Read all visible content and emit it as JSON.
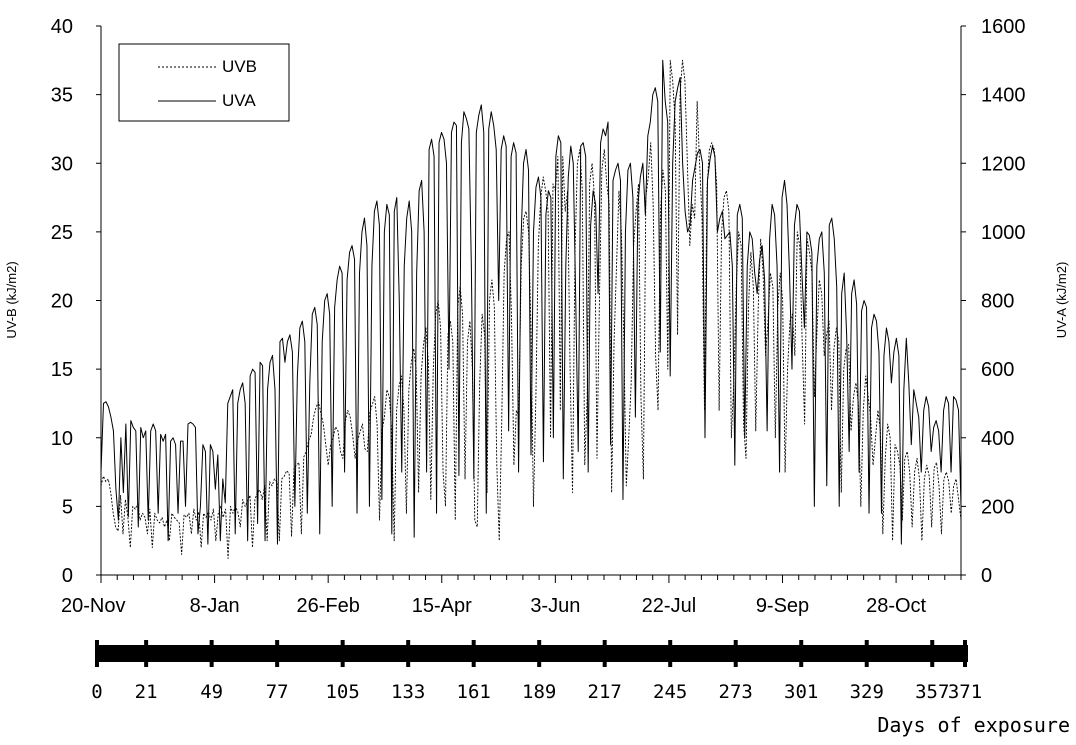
{
  "chart_data": {
    "type": "line",
    "title": "",
    "ylabel_left": "UV-B (kJ/m2)",
    "ylabel_right": "UV-A (kJ/m2)",
    "ylim_left": [
      0,
      40
    ],
    "ylim_right": [
      0,
      1600
    ],
    "yticks_left": [
      "0",
      "5",
      "10",
      "15",
      "20",
      "25",
      "30",
      "35",
      "40"
    ],
    "yticks_right": [
      "0",
      "200",
      "400",
      "600",
      "800",
      "1000",
      "1200",
      "1400",
      "1600"
    ],
    "x_start_label": "20-Nov",
    "date_ticks": [
      "20-Nov",
      "8-Jan",
      "26-Feb",
      "15-Apr",
      "3-Jun",
      "22-Jul",
      "9-Sep",
      "28-Oct"
    ],
    "xlim_days": [
      0,
      371
    ],
    "grid": false,
    "legend_position": "top-left",
    "series": [
      {
        "name": "UVB",
        "axis": "left",
        "line_style": "dotted",
        "values": [
          6.5,
          7.2,
          6.8,
          7.0,
          6.0,
          4.5,
          3.5,
          3.2,
          5.8,
          3.0,
          5.5,
          4.2,
          2.0,
          5.0,
          4.8,
          5.2,
          4.0,
          4.5,
          4.2,
          3.0,
          4.8,
          2.0,
          4.5,
          4.0,
          3.8,
          4.2,
          3.5,
          4.0,
          2.5,
          4.5,
          4.2,
          4.0,
          3.8,
          1.5,
          4.4,
          4.2,
          4.5,
          3.0,
          4.8,
          4.0,
          4.6,
          2.0,
          4.5,
          4.2,
          4.6,
          4.0,
          4.8,
          2.5,
          4.5,
          5.0,
          4.2,
          4.8,
          1.2,
          5.0,
          4.5,
          5.0,
          4.6,
          3.5,
          5.5,
          5.0,
          5.4,
          5.8,
          2.0,
          5.5,
          6.0,
          6.2,
          5.5,
          6.5,
          2.5,
          6.8,
          6.5,
          7.0,
          6.8,
          2.5,
          7.0,
          7.2,
          7.6,
          7.4,
          2.8,
          7.8,
          8.0,
          8.2,
          3.0,
          8.6,
          9.0,
          9.8,
          10.2,
          11.5,
          12.2,
          12.6,
          11.8,
          11.0,
          9.5,
          8.0,
          9.5,
          10.0,
          10.8,
          10.5,
          9.0,
          8.5,
          11.2,
          12.0,
          11.5,
          10.2,
          8.5,
          9.8,
          10.4,
          11.0,
          9.2,
          9.0,
          11.8,
          12.4,
          13.0,
          11.0,
          4.0,
          10.5,
          11.5,
          13.5,
          13.0,
          10.5,
          2.5,
          12.0,
          13.8,
          14.5,
          12.0,
          4.5,
          13.5,
          15.5,
          16.5,
          15.0,
          6.0,
          14.5,
          16.8,
          18.0,
          15.5,
          5.5,
          15.0,
          19.0,
          20.0,
          18.0,
          7.5,
          5.0,
          17.5,
          18.5,
          17.0,
          4.0,
          19.5,
          21.0,
          19.0,
          7.0,
          17.0,
          18.5,
          15.0,
          4.0,
          3.5,
          14.0,
          19.0,
          17.5,
          6.0,
          20.0,
          21.5,
          19.5,
          8.0,
          2.5,
          11.0,
          22.0,
          24.5,
          25.0,
          19.0,
          8.0,
          12.0,
          11.5,
          22.5,
          26.0,
          26.5,
          25.0,
          18.0,
          5.0,
          13.0,
          24.0,
          27.5,
          29.0,
          28.0,
          26.5,
          10.0,
          28.5,
          28.0,
          30.5,
          12.0,
          30.5,
          26.5,
          28.0,
          15.0,
          6.0,
          23.5,
          30.0,
          31.0,
          28.0,
          8.0,
          13.0,
          28.5,
          30.0,
          27.5,
          8.5,
          20.0,
          29.5,
          31.0,
          28.5,
          27.0,
          6.0,
          17.0,
          22.5,
          28.0,
          25.0,
          17.0,
          6.5,
          10.0,
          14.0,
          24.0,
          26.5,
          28.5,
          13.0,
          7.0,
          27.5,
          29.0,
          31.5,
          27.0,
          16.0,
          12.0,
          26.5,
          29.5,
          28.0,
          15.0,
          37.5,
          36.0,
          33.0,
          17.5,
          35.0,
          37.5,
          36.0,
          30.0,
          24.0,
          27.0,
          26.0,
          34.5,
          30.0,
          26.0,
          12.0,
          28.0,
          31.0,
          31.5,
          31.0,
          28.5,
          12.0,
          25.0,
          27.5,
          28.0,
          26.5,
          10.0,
          14.0,
          21.0,
          25.0,
          24.0,
          11.0,
          8.5,
          19.5,
          23.5,
          21.0,
          10.5,
          19.5,
          24.5,
          22.0,
          16.0,
          18.5,
          22.0,
          21.0,
          10.0,
          19.5,
          22.0,
          20.0,
          7.5,
          15.0,
          18.5,
          19.0,
          16.0,
          25.0,
          24.0,
          17.0,
          11.0,
          24.5,
          23.5,
          22.0,
          13.0,
          17.5,
          21.5,
          20.5,
          16.0,
          17.5,
          18.5,
          12.0,
          16.5,
          18.0,
          17.0,
          6.0,
          15.0,
          16.5,
          16.8,
          10.5,
          13.0,
          14.0,
          12.5,
          5.0,
          12.0,
          14.5,
          13.0,
          11.5,
          8.0,
          10.0,
          12.0,
          10.5,
          3.0,
          8.5,
          11.0,
          10.0,
          2.5,
          9.5,
          9.0,
          8.0,
          4.0,
          8.5,
          9.0,
          7.5,
          3.5,
          7.5,
          8.5,
          7.0,
          2.5,
          7.0,
          8.0,
          7.2,
          3.5,
          7.8,
          8.2,
          6.5,
          3.0,
          7.0,
          7.5,
          6.8,
          4.5,
          6.5,
          7.0,
          5.5,
          4.0
        ]
      },
      {
        "name": "UVA",
        "axis": "right",
        "line_style": "solid",
        "values": [
          300,
          500,
          505,
          490,
          460,
          420,
          250,
          160,
          400,
          240,
          440,
          170,
          450,
          430,
          420,
          140,
          430,
          400,
          420,
          160,
          420,
          440,
          420,
          180,
          410,
          390,
          410,
          100,
          390,
          400,
          380,
          180,
          390,
          390,
          200,
          440,
          445,
          440,
          430,
          120,
          200,
          380,
          360,
          90,
          380,
          360,
          250,
          350,
          100,
          280,
          210,
          500,
          520,
          540,
          120,
          500,
          540,
          560,
          500,
          100,
          580,
          600,
          590,
          150,
          620,
          610,
          100,
          540,
          620,
          640,
          540,
          90,
          680,
          690,
          620,
          680,
          700,
          650,
          200,
          580,
          720,
          740,
          680,
          180,
          560,
          760,
          780,
          730,
          120,
          680,
          800,
          820,
          760,
          200,
          780,
          860,
          900,
          880,
          300,
          860,
          940,
          960,
          920,
          180,
          880,
          1000,
          1040,
          960,
          200,
          900,
          1060,
          1090,
          1020,
          220,
          1000,
          1080,
          1050,
          120,
          1060,
          1100,
          800,
          300,
          900,
          1040,
          1090,
          1000,
          110,
          880,
          1120,
          1150,
          1000,
          300,
          1240,
          1270,
          1220,
          180,
          1260,
          1290,
          1270,
          1200,
          600,
          1290,
          1320,
          1310,
          290,
          1260,
          1350,
          1330,
          1300,
          900,
          280,
          1290,
          1340,
          1370,
          1290,
          180,
          1300,
          1350,
          1310,
          1240,
          800,
          1240,
          1280,
          1250,
          420,
          1220,
          1260,
          1230,
          300,
          980,
          1200,
          1240,
          1180,
          350,
          1000,
          1130,
          1160,
          1100,
          330,
          1050,
          1120,
          1100,
          400,
          1220,
          1280,
          1260,
          280,
          900,
          1160,
          1250,
          1200,
          800,
          360,
          1250,
          1260,
          1220,
          300,
          1020,
          1120,
          1080,
          820,
          1260,
          1300,
          1280,
          1320,
          380,
          1150,
          1180,
          1200,
          1150,
          220,
          1000,
          1180,
          1200,
          1100,
          460,
          1080,
          1160,
          1200,
          1050,
          1280,
          1320,
          1400,
          1420,
          1380,
          650,
          1500,
          1380,
          1320,
          580,
          1200,
          1380,
          1420,
          1450,
          1200,
          1060,
          1000,
          1020,
          1150,
          1190,
          1230,
          1240,
          1200,
          400,
          1150,
          1210,
          1250,
          1220,
          1000,
          1040,
          1060,
          980,
          990,
          1000,
          900,
          320,
          1050,
          1080,
          1040,
          400,
          900,
          1000,
          980,
          880,
          820,
          920,
          960,
          860,
          420,
          980,
          1080,
          1050,
          900,
          300,
          1100,
          1150,
          1080,
          880,
          600,
          1020,
          1080,
          1060,
          880,
          720,
          1000,
          990,
          940,
          200,
          900,
          980,
          1000,
          880,
          260,
          1020,
          1040,
          980,
          840,
          200,
          820,
          880,
          700,
          360,
          820,
          860,
          790,
          300,
          770,
          800,
          780,
          180,
          720,
          760,
          740,
          650,
          180,
          640,
          720,
          680,
          560,
          650,
          690,
          640,
          90,
          540,
          690,
          560,
          380,
          540,
          500,
          460,
          300,
          480,
          520,
          490,
          360,
          430,
          450,
          420,
          300,
          480,
          520,
          500,
          300,
          520,
          510,
          480,
          200
        ]
      }
    ]
  },
  "exposure_axis": {
    "ticks": [
      "0",
      "21",
      "49",
      "77",
      "105",
      "133",
      "161",
      "189",
      "217",
      "245",
      "273",
      "301",
      "329",
      "357",
      "371"
    ],
    "ticks_days": [
      0,
      21,
      49,
      77,
      105,
      133,
      161,
      189,
      217,
      245,
      273,
      301,
      329,
      357,
      371
    ],
    "label": "Days of exposure"
  },
  "colors": {
    "line": "#000000",
    "background": "#ffffff",
    "text": "#000000"
  }
}
